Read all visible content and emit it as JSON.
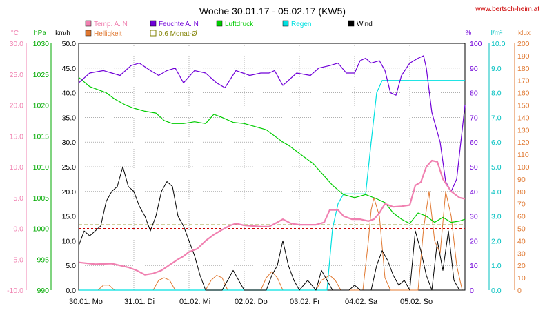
{
  "chart_data": {
    "type": "line",
    "title": "Woche 30.01.17 - 05.02.17 (KW5)",
    "credit": "www.bertsch-heim.at",
    "colors": {
      "temp": "#f080b0",
      "feuchte": "#7000d8",
      "luftdruck": "#00cc00",
      "regen": "#00e0e0",
      "wind": "#000000",
      "helligkeit": "#e07830",
      "monat": "#808000",
      "zero": "#cc0000",
      "grid": "#808080"
    },
    "legend": [
      {
        "key": "temp",
        "label": "Temp. A. N",
        "swatch": "box"
      },
      {
        "key": "feuchte",
        "label": "Feuchte A. N",
        "swatch": "box"
      },
      {
        "key": "luftdruck",
        "label": "Luftdruck",
        "swatch": "box"
      },
      {
        "key": "regen",
        "label": "Regen",
        "swatch": "box"
      },
      {
        "key": "wind",
        "label": "Wind",
        "swatch": "box"
      },
      {
        "key": "helligkeit",
        "label": "Helligkeit",
        "swatch": "box"
      },
      {
        "key": "monat",
        "label": "0.6 Monat-Ø",
        "swatch": "hollow"
      }
    ],
    "axes": {
      "temp": {
        "unit": "°C",
        "min": -10,
        "max": 30,
        "step": 5,
        "ticks": [
          "-10.0",
          "-5.0",
          "0.0",
          "5.0",
          "10.0",
          "15.0",
          "20.0",
          "25.0",
          "30.0"
        ]
      },
      "pressure": {
        "unit": "hPa",
        "min": 990,
        "max": 1030,
        "step": 5,
        "ticks": [
          "990",
          "995",
          "1000",
          "1005",
          "1010",
          "1015",
          "1020",
          "1025",
          "1030"
        ]
      },
      "wind": {
        "unit": "km/h",
        "min": 0,
        "max": 50,
        "step": 5,
        "ticks": [
          "0.0",
          "5.0",
          "10.0",
          "15.0",
          "20.0",
          "25.0",
          "30.0",
          "35.0",
          "40.0",
          "45.0",
          "50.0"
        ]
      },
      "humidity": {
        "unit": "%",
        "min": 0,
        "max": 100,
        "step": 10,
        "ticks": [
          "0",
          "10",
          "20",
          "30",
          "40",
          "50",
          "60",
          "70",
          "80",
          "90",
          "100"
        ]
      },
      "rain": {
        "unit": "l/m²",
        "min": 0,
        "max": 10,
        "step": 1,
        "ticks": [
          "0.0",
          "1.0",
          "2.0",
          "3.0",
          "4.0",
          "5.0",
          "6.0",
          "7.0",
          "8.0",
          "9.0",
          "10.0"
        ]
      },
      "lux": {
        "unit": "klux",
        "min": 0,
        "max": 200,
        "step": 10,
        "ticks": [
          "0",
          "10",
          "20",
          "30",
          "40",
          "50",
          "60",
          "70",
          "80",
          "90",
          "100",
          "110",
          "120",
          "130",
          "140",
          "150",
          "160",
          "170",
          "180",
          "190",
          "200"
        ]
      }
    },
    "days": [
      "30.01. Mo",
      "31.01. Di",
      "01.02. Mi",
      "02.02. Do",
      "03.02. Fr",
      "04.02. Sa",
      "05.02. So"
    ],
    "x_range": [
      0,
      7
    ],
    "monat_avg_temp": 0.6,
    "series": {
      "temp": [
        [
          0,
          -5.5
        ],
        [
          0.3,
          -5.8
        ],
        [
          0.6,
          -5.7
        ],
        [
          0.9,
          -6.3
        ],
        [
          1.05,
          -6.8
        ],
        [
          1.2,
          -7.5
        ],
        [
          1.35,
          -7.3
        ],
        [
          1.5,
          -6.8
        ],
        [
          1.65,
          -5.9
        ],
        [
          1.8,
          -5.0
        ],
        [
          1.9,
          -4.5
        ],
        [
          2.0,
          -3.8
        ],
        [
          2.15,
          -3.3
        ],
        [
          2.3,
          -2.0
        ],
        [
          2.45,
          -1.0
        ],
        [
          2.6,
          -0.2
        ],
        [
          2.75,
          0.5
        ],
        [
          2.85,
          0.8
        ],
        [
          3.0,
          0.5
        ],
        [
          3.15,
          0.4
        ],
        [
          3.3,
          0.3
        ],
        [
          3.45,
          0.3
        ],
        [
          3.6,
          1.0
        ],
        [
          3.7,
          1.5
        ],
        [
          3.85,
          0.8
        ],
        [
          4.0,
          0.6
        ],
        [
          4.3,
          0.6
        ],
        [
          4.45,
          1.0
        ],
        [
          4.55,
          3.0
        ],
        [
          4.7,
          3.0
        ],
        [
          4.8,
          2.0
        ],
        [
          4.95,
          1.5
        ],
        [
          5.1,
          1.5
        ],
        [
          5.25,
          1.2
        ],
        [
          5.35,
          1.5
        ],
        [
          5.45,
          2.5
        ],
        [
          5.55,
          4.0
        ],
        [
          5.7,
          3.5
        ],
        [
          5.85,
          3.6
        ],
        [
          6.0,
          3.8
        ],
        [
          6.1,
          7.0
        ],
        [
          6.2,
          7.5
        ],
        [
          6.3,
          10.0
        ],
        [
          6.4,
          11.0
        ],
        [
          6.5,
          10.8
        ],
        [
          6.6,
          8.0
        ],
        [
          6.75,
          6.0
        ],
        [
          6.9,
          5.0
        ],
        [
          7.0,
          4.8
        ]
      ],
      "feuchte": [
        [
          0,
          84
        ],
        [
          0.2,
          88
        ],
        [
          0.45,
          89
        ],
        [
          0.6,
          88
        ],
        [
          0.75,
          87
        ],
        [
          0.95,
          91
        ],
        [
          1.1,
          92
        ],
        [
          1.3,
          89
        ],
        [
          1.45,
          87
        ],
        [
          1.6,
          89
        ],
        [
          1.75,
          90
        ],
        [
          1.9,
          84
        ],
        [
          2.1,
          89
        ],
        [
          2.3,
          88
        ],
        [
          2.5,
          84
        ],
        [
          2.65,
          82
        ],
        [
          2.85,
          89
        ],
        [
          3.1,
          87
        ],
        [
          3.3,
          88
        ],
        [
          3.45,
          88
        ],
        [
          3.55,
          89
        ],
        [
          3.7,
          83
        ],
        [
          3.95,
          88
        ],
        [
          4.2,
          87
        ],
        [
          4.35,
          90
        ],
        [
          4.55,
          91
        ],
        [
          4.7,
          92
        ],
        [
          4.85,
          88
        ],
        [
          5.0,
          88
        ],
        [
          5.1,
          93
        ],
        [
          5.2,
          94
        ],
        [
          5.3,
          92
        ],
        [
          5.45,
          93
        ],
        [
          5.55,
          89
        ],
        [
          5.65,
          80
        ],
        [
          5.75,
          79
        ],
        [
          5.85,
          87
        ],
        [
          6.0,
          92
        ],
        [
          6.15,
          94
        ],
        [
          6.25,
          95
        ],
        [
          6.3,
          90
        ],
        [
          6.4,
          72
        ],
        [
          6.55,
          60
        ],
        [
          6.65,
          44
        ],
        [
          6.75,
          40
        ],
        [
          6.85,
          45
        ],
        [
          6.95,
          65
        ],
        [
          7.0,
          75
        ]
      ],
      "luftdruck": [
        [
          0,
          1024.5
        ],
        [
          0.2,
          1023.0
        ],
        [
          0.5,
          1022.0
        ],
        [
          0.65,
          1021.0
        ],
        [
          0.85,
          1020.0
        ],
        [
          1.0,
          1019.5
        ],
        [
          1.2,
          1019.0
        ],
        [
          1.4,
          1018.7
        ],
        [
          1.55,
          1017.5
        ],
        [
          1.7,
          1017.0
        ],
        [
          1.9,
          1017.0
        ],
        [
          2.1,
          1017.3
        ],
        [
          2.3,
          1017.0
        ],
        [
          2.45,
          1018.5
        ],
        [
          2.6,
          1018.0
        ],
        [
          2.8,
          1017.2
        ],
        [
          3.0,
          1017.0
        ],
        [
          3.2,
          1016.5
        ],
        [
          3.4,
          1016.0
        ],
        [
          3.55,
          1015.0
        ],
        [
          3.7,
          1014.0
        ],
        [
          3.8,
          1013.5
        ],
        [
          3.95,
          1012.5
        ],
        [
          4.1,
          1011.5
        ],
        [
          4.25,
          1010.5
        ],
        [
          4.4,
          1009.0
        ],
        [
          4.6,
          1007.0
        ],
        [
          4.8,
          1005.5
        ],
        [
          5.0,
          1005.0
        ],
        [
          5.2,
          1005.5
        ],
        [
          5.4,
          1004.8
        ],
        [
          5.55,
          1004.2
        ],
        [
          5.7,
          1002.5
        ],
        [
          5.85,
          1001.5
        ],
        [
          6.0,
          1000.8
        ],
        [
          6.15,
          1002.5
        ],
        [
          6.3,
          1002.0
        ],
        [
          6.45,
          1001.0
        ],
        [
          6.6,
          1001.8
        ],
        [
          6.75,
          1001.0
        ],
        [
          6.9,
          1001.2
        ],
        [
          7.0,
          1001.5
        ]
      ],
      "regen": [
        [
          0,
          0
        ],
        [
          4.5,
          0
        ],
        [
          4.6,
          2.5
        ],
        [
          4.7,
          3.5
        ],
        [
          4.8,
          3.9
        ],
        [
          5.0,
          3.9
        ],
        [
          5.2,
          3.9
        ],
        [
          5.3,
          6.0
        ],
        [
          5.4,
          8.0
        ],
        [
          5.5,
          8.5
        ],
        [
          5.6,
          8.5
        ],
        [
          7.0,
          8.5
        ]
      ],
      "wind": [
        [
          0,
          9
        ],
        [
          0.1,
          12
        ],
        [
          0.2,
          11
        ],
        [
          0.3,
          12
        ],
        [
          0.4,
          13
        ],
        [
          0.5,
          18
        ],
        [
          0.6,
          20
        ],
        [
          0.7,
          21
        ],
        [
          0.8,
          25
        ],
        [
          0.9,
          21
        ],
        [
          1.0,
          20
        ],
        [
          1.1,
          17
        ],
        [
          1.2,
          15
        ],
        [
          1.3,
          12
        ],
        [
          1.4,
          15
        ],
        [
          1.5,
          20
        ],
        [
          1.6,
          22
        ],
        [
          1.7,
          21
        ],
        [
          1.8,
          15
        ],
        [
          1.9,
          13
        ],
        [
          2.0,
          10
        ],
        [
          2.1,
          7
        ],
        [
          2.2,
          3
        ],
        [
          2.3,
          0
        ],
        [
          2.6,
          0
        ],
        [
          2.7,
          2
        ],
        [
          2.8,
          4
        ],
        [
          2.9,
          2
        ],
        [
          3.0,
          0
        ],
        [
          3.4,
          0
        ],
        [
          3.5,
          3
        ],
        [
          3.6,
          5
        ],
        [
          3.7,
          10
        ],
        [
          3.8,
          5
        ],
        [
          3.9,
          2
        ],
        [
          4.0,
          0
        ],
        [
          4.15,
          2
        ],
        [
          4.3,
          0
        ],
        [
          4.4,
          4
        ],
        [
          4.5,
          2
        ],
        [
          4.6,
          0
        ],
        [
          4.9,
          0
        ],
        [
          5.0,
          1
        ],
        [
          5.1,
          0
        ],
        [
          5.3,
          0
        ],
        [
          5.4,
          5
        ],
        [
          5.5,
          8
        ],
        [
          5.6,
          6
        ],
        [
          5.7,
          3
        ],
        [
          5.8,
          1
        ],
        [
          5.9,
          2
        ],
        [
          6.0,
          0
        ],
        [
          6.1,
          12
        ],
        [
          6.2,
          8
        ],
        [
          6.3,
          3
        ],
        [
          6.4,
          0
        ],
        [
          6.5,
          10
        ],
        [
          6.6,
          4
        ],
        [
          6.7,
          12
        ],
        [
          6.8,
          2
        ],
        [
          6.9,
          0
        ],
        [
          7.0,
          0
        ]
      ],
      "helligkeit": [
        [
          0,
          0
        ],
        [
          0.35,
          0
        ],
        [
          0.45,
          4
        ],
        [
          0.55,
          4
        ],
        [
          0.65,
          0
        ],
        [
          1.35,
          0
        ],
        [
          1.45,
          8
        ],
        [
          1.55,
          10
        ],
        [
          1.65,
          8
        ],
        [
          1.75,
          0
        ],
        [
          2.3,
          0
        ],
        [
          2.4,
          8
        ],
        [
          2.5,
          12
        ],
        [
          2.6,
          10
        ],
        [
          2.7,
          0
        ],
        [
          3.3,
          0
        ],
        [
          3.4,
          10
        ],
        [
          3.5,
          15
        ],
        [
          3.6,
          10
        ],
        [
          3.7,
          0
        ],
        [
          4.3,
          0
        ],
        [
          4.4,
          8
        ],
        [
          4.55,
          12
        ],
        [
          4.65,
          8
        ],
        [
          4.75,
          0
        ],
        [
          5.15,
          0
        ],
        [
          5.25,
          40
        ],
        [
          5.3,
          65
        ],
        [
          5.35,
          75
        ],
        [
          5.45,
          60
        ],
        [
          5.55,
          10
        ],
        [
          5.65,
          0
        ],
        [
          6.15,
          0
        ],
        [
          6.25,
          50
        ],
        [
          6.35,
          80
        ],
        [
          6.45,
          40
        ],
        [
          6.55,
          30
        ],
        [
          6.65,
          80
        ],
        [
          6.75,
          60
        ],
        [
          6.85,
          20
        ],
        [
          6.95,
          0
        ]
      ]
    }
  }
}
